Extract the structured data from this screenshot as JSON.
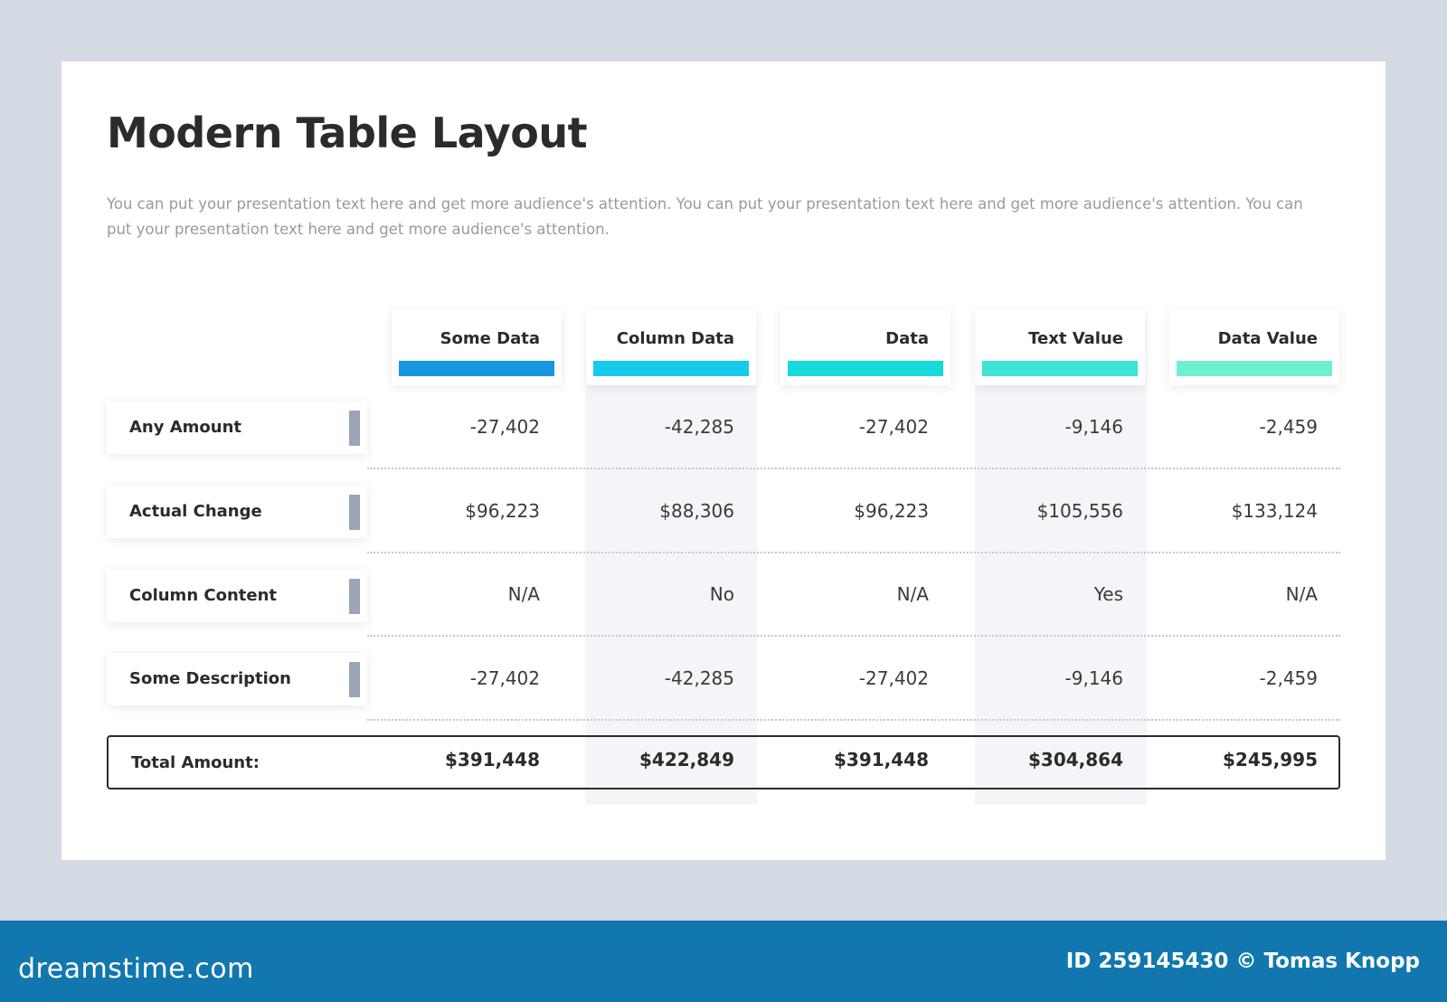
{
  "slide": {
    "title": "Modern Table Layout",
    "description": "You can put your presentation text here and get more audience's attention. You can put your presentation text here and get more audience's attention. You can put your presentation text here and get more audience's attention."
  },
  "table": {
    "columns": [
      {
        "label": "Some Data",
        "color": "#1797dd"
      },
      {
        "label": "Column Data",
        "color": "#17c9ea"
      },
      {
        "label": "Data",
        "color": "#17dadb"
      },
      {
        "label": "Text Value",
        "color": "#3ee3d4"
      },
      {
        "label": "Data Value",
        "color": "#6ef0cf"
      }
    ],
    "rows": [
      {
        "label": "Any Amount",
        "values": [
          "-27,402",
          "-42,285",
          "-27,402",
          "-9,146",
          "-2,459"
        ]
      },
      {
        "label": "Actual Change",
        "values": [
          "$96,223",
          "$88,306",
          "$96,223",
          "$105,556",
          "$133,124"
        ]
      },
      {
        "label": "Column Content",
        "values": [
          "N/A",
          "No",
          "N/A",
          "Yes",
          "N/A"
        ]
      },
      {
        "label": "Some Description",
        "values": [
          "-27,402",
          "-42,285",
          "-27,402",
          "-9,146",
          "-2,459"
        ]
      }
    ],
    "total": {
      "label": "Total Amount:",
      "values": [
        "$391,448",
        "$422,849",
        "$391,448",
        "$304,864",
        "$245,995"
      ]
    },
    "row_marker_color": "#9aa6b8"
  },
  "footer": {
    "logo": "dreamstime.com",
    "credit": "ID 259145430 © Tomas Knopp"
  }
}
